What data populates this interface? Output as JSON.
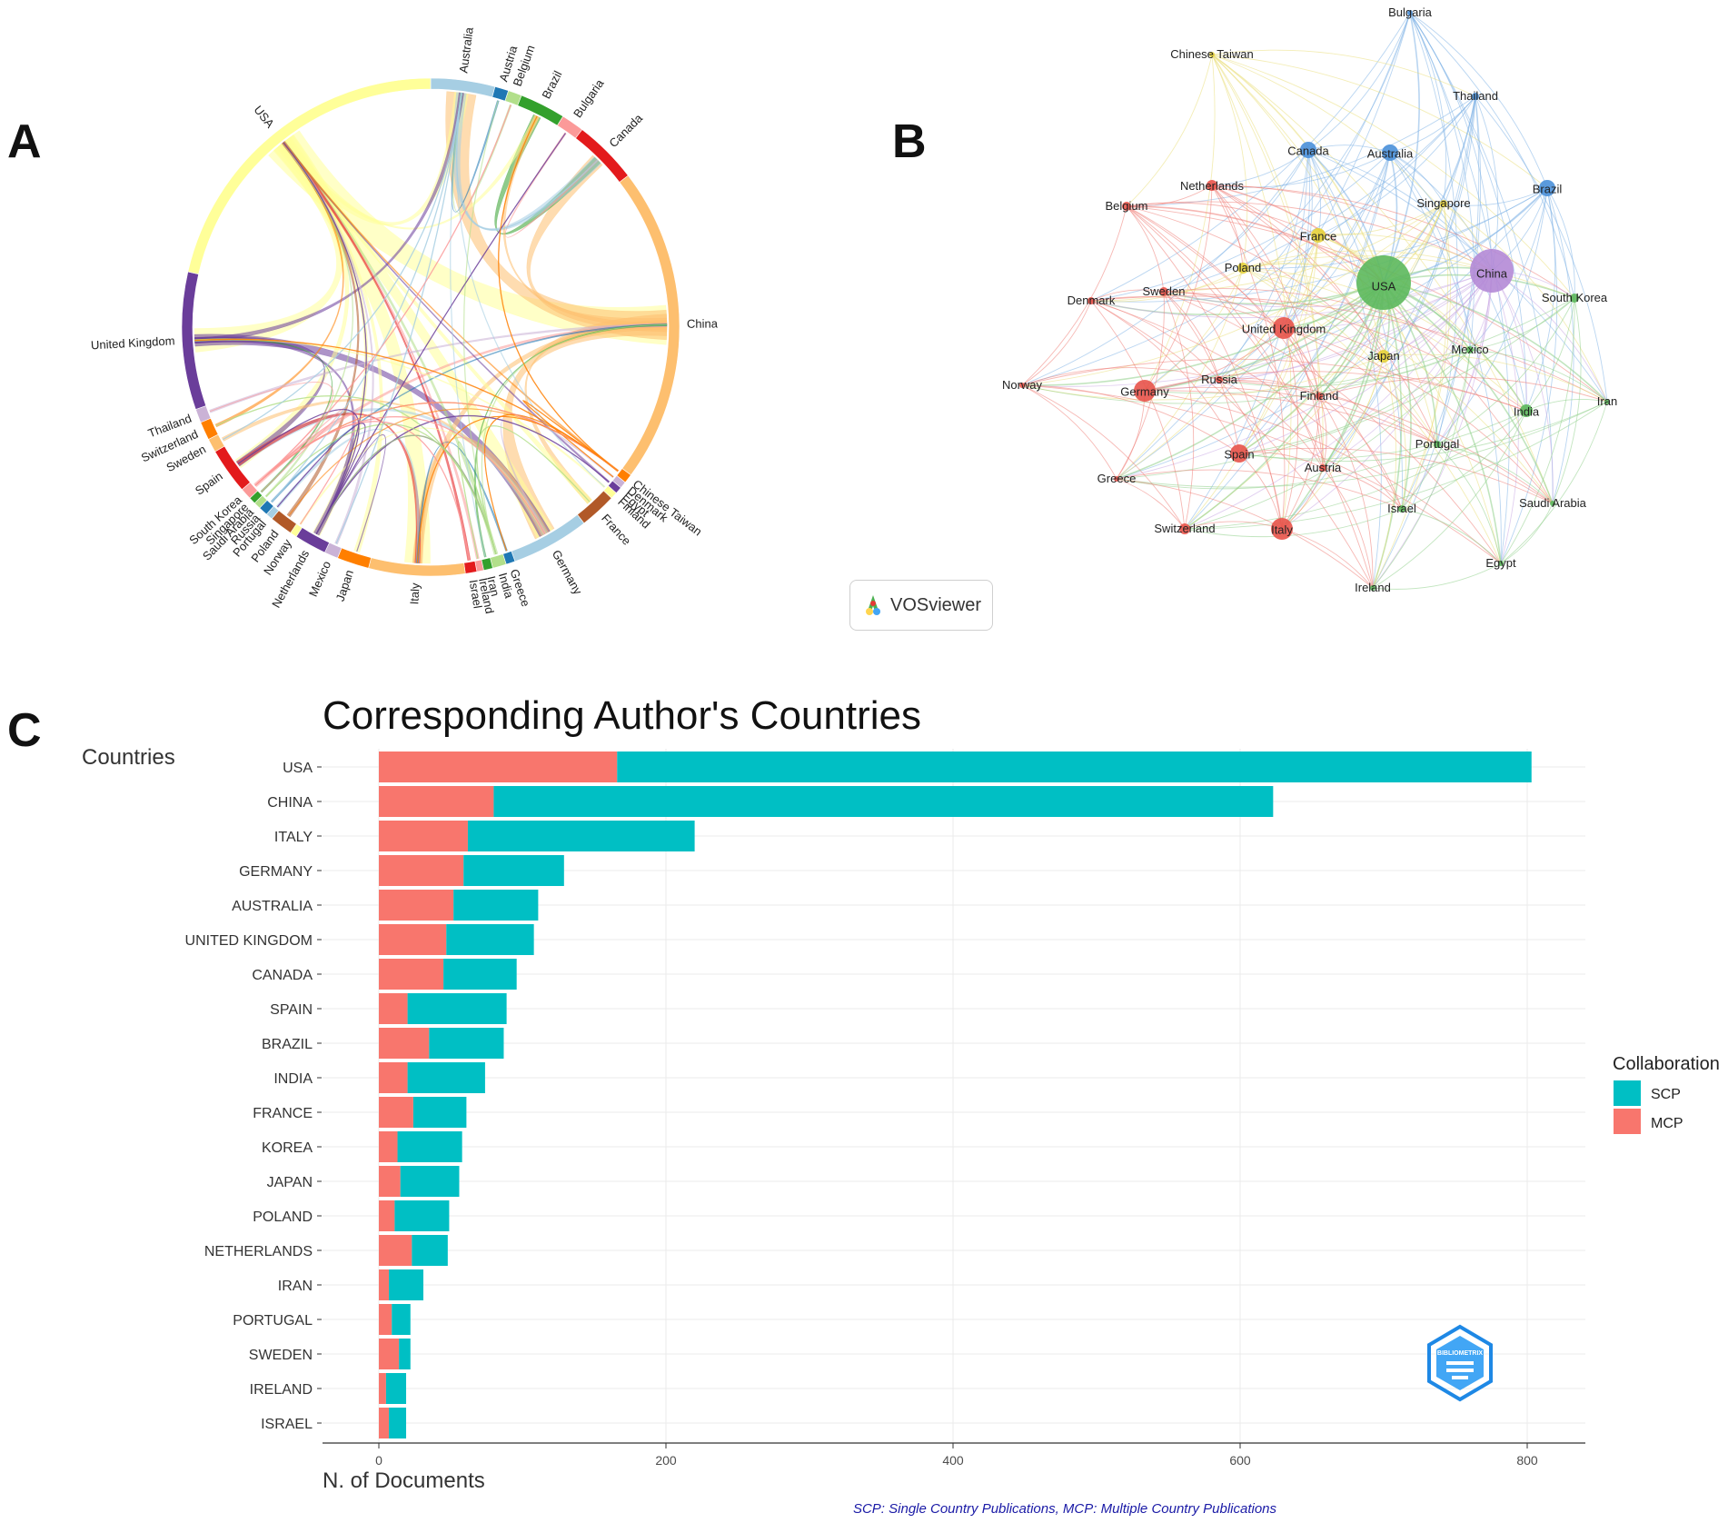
{
  "panels": {
    "a": "A",
    "b": "B",
    "c": "C"
  },
  "chord": {
    "countries": [
      {
        "name": "Australia",
        "color": "#a6cee3"
      },
      {
        "name": "Austria",
        "color": "#1f78b4"
      },
      {
        "name": "Belgium",
        "color": "#b2df8a"
      },
      {
        "name": "Brazil",
        "color": "#33a02c"
      },
      {
        "name": "Bulgaria",
        "color": "#fb9a99"
      },
      {
        "name": "Canada",
        "color": "#e31a1c"
      },
      {
        "name": "China",
        "color": "#fdbf6f"
      },
      {
        "name": "Chinese Taiwan",
        "color": "#ff7f00"
      },
      {
        "name": "Denmark",
        "color": "#cab2d6"
      },
      {
        "name": "Egypt",
        "color": "#6a3d9a"
      },
      {
        "name": "Finland",
        "color": "#ffff99"
      },
      {
        "name": "France",
        "color": "#b15928"
      },
      {
        "name": "Germany",
        "color": "#a6cee3"
      },
      {
        "name": "Greece",
        "color": "#1f78b4"
      },
      {
        "name": "India",
        "color": "#b2df8a"
      },
      {
        "name": "Iran",
        "color": "#33a02c"
      },
      {
        "name": "Ireland",
        "color": "#fb9a99"
      },
      {
        "name": "Israel",
        "color": "#e31a1c"
      },
      {
        "name": "Italy",
        "color": "#fdbf6f"
      },
      {
        "name": "Japan",
        "color": "#ff7f00"
      },
      {
        "name": "Mexico",
        "color": "#cab2d6"
      },
      {
        "name": "Netherlands",
        "color": "#6a3d9a"
      },
      {
        "name": "Norway",
        "color": "#ffff99"
      },
      {
        "name": "Poland",
        "color": "#b15928"
      },
      {
        "name": "Portugal",
        "color": "#a6cee3"
      },
      {
        "name": "Russia",
        "color": "#1f78b4"
      },
      {
        "name": "Saudi Arabia",
        "color": "#b2df8a"
      },
      {
        "name": "Singapore",
        "color": "#33a02c"
      },
      {
        "name": "South Korea",
        "color": "#fb9a99"
      },
      {
        "name": "Spain",
        "color": "#e31a1c"
      },
      {
        "name": "Sweden",
        "color": "#fdbf6f"
      },
      {
        "name": "Switzerland",
        "color": "#ff7f00"
      },
      {
        "name": "Thailand",
        "color": "#cab2d6"
      },
      {
        "name": "United Kingdom",
        "color": "#6a3d9a"
      },
      {
        "name": "USA",
        "color": "#ffff99"
      }
    ]
  },
  "network": {
    "brand": "VOSviewer",
    "nodes": [
      {
        "name": "Bulgaria",
        "cluster": "blue"
      },
      {
        "name": "Chinese Taiwan",
        "cluster": "yellow"
      },
      {
        "name": "Thailand",
        "cluster": "blue"
      },
      {
        "name": "Canada",
        "cluster": "blue"
      },
      {
        "name": "Australia",
        "cluster": "blue"
      },
      {
        "name": "Brazil",
        "cluster": "blue"
      },
      {
        "name": "Netherlands",
        "cluster": "red"
      },
      {
        "name": "Belgium",
        "cluster": "red"
      },
      {
        "name": "Singapore",
        "cluster": "yellow"
      },
      {
        "name": "France",
        "cluster": "yellow"
      },
      {
        "name": "Poland",
        "cluster": "yellow"
      },
      {
        "name": "USA",
        "cluster": "green"
      },
      {
        "name": "China",
        "cluster": "purple"
      },
      {
        "name": "Denmark",
        "cluster": "red"
      },
      {
        "name": "Sweden",
        "cluster": "red"
      },
      {
        "name": "South Korea",
        "cluster": "green"
      },
      {
        "name": "United Kingdom",
        "cluster": "red"
      },
      {
        "name": "Japan",
        "cluster": "yellow"
      },
      {
        "name": "Mexico",
        "cluster": "green"
      },
      {
        "name": "Norway",
        "cluster": "red"
      },
      {
        "name": "Germany",
        "cluster": "red"
      },
      {
        "name": "Russia",
        "cluster": "red"
      },
      {
        "name": "Finland",
        "cluster": "red"
      },
      {
        "name": "India",
        "cluster": "green"
      },
      {
        "name": "Iran",
        "cluster": "green"
      },
      {
        "name": "Portugal",
        "cluster": "green"
      },
      {
        "name": "Spain",
        "cluster": "red"
      },
      {
        "name": "Austria",
        "cluster": "red"
      },
      {
        "name": "Greece",
        "cluster": "red"
      },
      {
        "name": "Israel",
        "cluster": "green"
      },
      {
        "name": "Saudi Arabia",
        "cluster": "green"
      },
      {
        "name": "Switzerland",
        "cluster": "red"
      },
      {
        "name": "Italy",
        "cluster": "red"
      },
      {
        "name": "Egypt",
        "cluster": "green"
      },
      {
        "name": "Ireland",
        "cluster": "green"
      }
    ]
  },
  "chart_data": {
    "type": "bar",
    "orientation": "horizontal",
    "stacked": true,
    "title": "Corresponding Author's Countries",
    "xlabel": "N. of Documents",
    "ylabel": "Countries",
    "xlim": [
      0,
      800
    ],
    "xticks": [
      0,
      200,
      400,
      600,
      800
    ],
    "categories": [
      "USA",
      "CHINA",
      "ITALY",
      "GERMANY",
      "AUSTRALIA",
      "UNITED KINGDOM",
      "CANADA",
      "SPAIN",
      "BRAZIL",
      "INDIA",
      "FRANCE",
      "KOREA",
      "JAPAN",
      "POLAND",
      "NETHERLANDS",
      "IRAN",
      "PORTUGAL",
      "SWEDEN",
      "IRELAND",
      "ISRAEL"
    ],
    "series": [
      {
        "name": "MCP",
        "color": "#f8766d",
        "values": [
          166,
          80,
          62,
          59,
          52,
          47,
          45,
          20,
          35,
          20,
          24,
          13,
          15,
          11,
          23,
          7,
          9,
          14,
          5,
          7
        ]
      },
      {
        "name": "SCP",
        "color": "#00bfc4",
        "values": [
          637,
          543,
          158,
          70,
          59,
          61,
          51,
          69,
          52,
          54,
          37,
          45,
          41,
          38,
          25,
          24,
          13,
          8,
          14,
          12
        ]
      }
    ],
    "legend": {
      "title": "Collaboration",
      "position": "right",
      "entries": [
        "SCP",
        "MCP"
      ]
    },
    "caption": "SCP: Single Country Publications, MCP: Multiple Country Publications",
    "watermark": "BIBLIOMETRIX"
  }
}
